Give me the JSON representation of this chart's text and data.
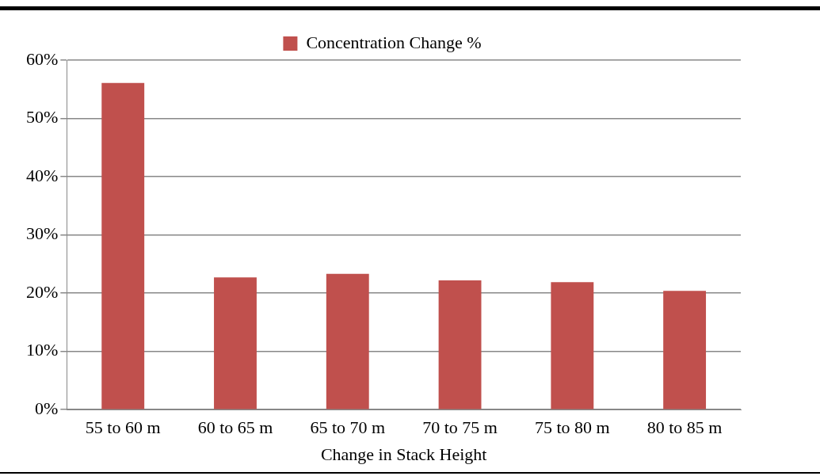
{
  "chart_data": {
    "type": "bar",
    "xlabel": "Change in Stack Height",
    "categories": [
      "55 to 60 m",
      "60 to 65 m",
      "65 to 70 m",
      "70 to 75 m",
      "75 to 80 m",
      "80 to 85 m"
    ],
    "series": [
      {
        "name": "Concentration Change %",
        "color": "#c0504d",
        "values": [
          56.1,
          22.7,
          23.3,
          22.2,
          21.9,
          20.4
        ]
      }
    ],
    "ylim": [
      0,
      60
    ],
    "yticks": [
      {
        "value": 0,
        "label": "0%"
      },
      {
        "value": 10,
        "label": "10%"
      },
      {
        "value": 20,
        "label": "20%"
      },
      {
        "value": 30,
        "label": "30%"
      },
      {
        "value": 40,
        "label": "40%"
      },
      {
        "value": 50,
        "label": "50%"
      },
      {
        "value": 60,
        "label": "60%"
      }
    ],
    "grid": "y",
    "legend": "top"
  }
}
